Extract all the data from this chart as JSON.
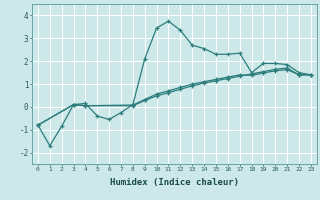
{
  "xlabel": "Humidex (Indice chaleur)",
  "ylabel": "",
  "bg_color": "#cce8e8",
  "grid_color": "#ffffff",
  "line_color": "#2d7d7d",
  "xlim": [
    -0.5,
    23.5
  ],
  "ylim": [
    -2.5,
    4.5
  ],
  "yticks": [
    -2,
    -1,
    0,
    1,
    2,
    3,
    4
  ],
  "xticks": [
    0,
    1,
    2,
    3,
    4,
    5,
    6,
    7,
    8,
    9,
    10,
    11,
    12,
    13,
    14,
    15,
    16,
    17,
    18,
    19,
    20,
    21,
    22,
    23
  ],
  "series1_x": [
    0,
    1,
    2,
    3,
    4,
    5,
    6,
    7,
    8,
    9,
    10,
    11,
    12,
    13,
    14,
    15,
    16,
    17,
    18,
    19,
    20,
    21,
    22,
    23
  ],
  "series1_y": [
    -0.8,
    -1.7,
    -0.85,
    0.1,
    0.15,
    -0.4,
    -0.55,
    -0.25,
    0.1,
    2.1,
    3.45,
    3.75,
    3.35,
    2.7,
    2.55,
    2.3,
    2.3,
    2.35,
    1.5,
    1.9,
    1.9,
    1.85,
    1.5,
    1.4
  ],
  "series2_x": [
    0,
    3,
    4,
    8,
    9,
    10,
    11,
    12,
    13,
    14,
    15,
    16,
    17,
    18,
    19,
    20,
    21,
    22,
    23
  ],
  "series2_y": [
    -0.8,
    0.1,
    0.05,
    0.05,
    0.28,
    0.48,
    0.62,
    0.77,
    0.92,
    1.04,
    1.14,
    1.24,
    1.34,
    1.44,
    1.54,
    1.64,
    1.7,
    1.4,
    1.4
  ],
  "series3_x": [
    0,
    3,
    4,
    8,
    9,
    10,
    11,
    12,
    13,
    14,
    15,
    16,
    17,
    18,
    19,
    20,
    21,
    22,
    23
  ],
  "series3_y": [
    -0.8,
    0.1,
    0.05,
    0.08,
    0.32,
    0.56,
    0.7,
    0.85,
    0.99,
    1.1,
    1.2,
    1.3,
    1.4,
    1.38,
    1.48,
    1.58,
    1.63,
    1.4,
    1.4
  ]
}
